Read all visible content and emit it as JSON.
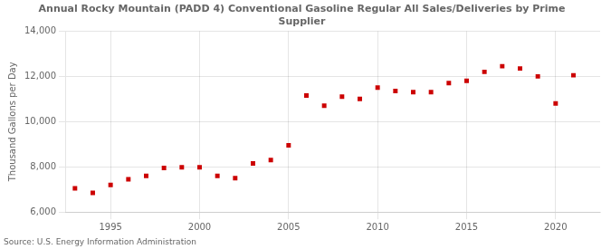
{
  "chart_data": {
    "type": "scatter",
    "title": "Annual Rocky Mountain (PADD 4) Conventional Gasoline Regular All Sales/Deliveries by Prime\nSupplier",
    "ylabel": "Thousand Gallons per Day",
    "source": "Source: U.S. Energy Information Administration",
    "x": [
      1993,
      1994,
      1995,
      1996,
      1997,
      1998,
      1999,
      2000,
      2001,
      2002,
      2003,
      2004,
      2005,
      2006,
      2007,
      2008,
      2009,
      2010,
      2011,
      2012,
      2013,
      2014,
      2015,
      2016,
      2017,
      2018,
      2019,
      2020,
      2021
    ],
    "values": [
      7050,
      6850,
      7200,
      7450,
      7600,
      7950,
      7980,
      7980,
      7600,
      7500,
      8150,
      8300,
      8950,
      11150,
      10700,
      11100,
      11000,
      11500,
      11350,
      11300,
      11300,
      11700,
      11800,
      12200,
      12450,
      12350,
      12000,
      10800,
      12050
    ],
    "color": "#cc0000",
    "marker": "square",
    "xlim": [
      1992.5,
      2022.5
    ],
    "xticks": [
      1995,
      2000,
      2005,
      2010,
      2015,
      2020
    ],
    "ylim": [
      6000,
      14000
    ],
    "yticks": [
      {
        "value": 6000,
        "label": "6,000"
      },
      {
        "value": 8000,
        "label": "8,000"
      },
      {
        "value": 10000,
        "label": "10,000"
      },
      {
        "value": 12000,
        "label": "12,000"
      },
      {
        "value": 14000,
        "label": "14,000"
      }
    ],
    "grid": true
  }
}
